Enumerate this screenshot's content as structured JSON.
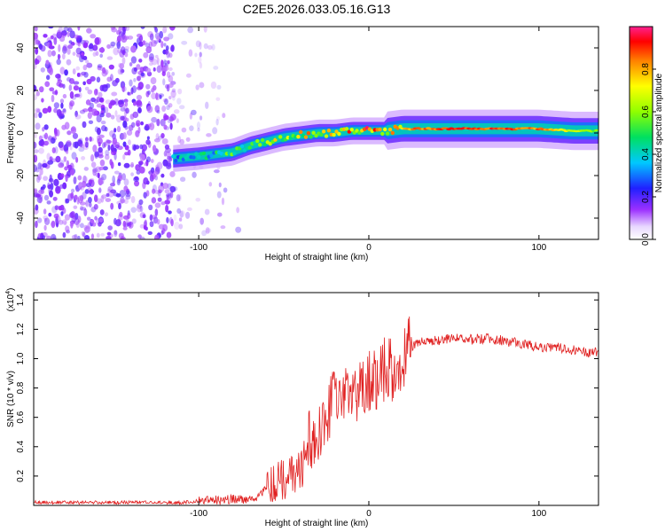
{
  "title": "C2E5.2026.033.05.16.G13",
  "colorbar": {
    "label": "Normalized spectral amplitude",
    "ticks": [
      "0.0",
      "0.2",
      "0.4",
      "0.6",
      "0.8"
    ]
  },
  "colors": {
    "snr_line": "#e02020",
    "scatter_purple": "#7a1cf0",
    "axis": "#000000"
  },
  "chart_data": [
    {
      "type": "heatmap",
      "title": "C2E5.2026.033.05.16.G13",
      "xlabel": "Height of straight line (km)",
      "ylabel": "Frequency (Hz)",
      "xlim": [
        -197,
        135
      ],
      "ylim": [
        -50,
        50
      ],
      "x_ticks": [
        -100,
        0,
        100
      ],
      "x_tick_labels": [
        "-100",
        "0",
        "100"
      ],
      "y_ticks": [
        -40,
        -20,
        0,
        20,
        40
      ],
      "y_tick_labels": [
        "-40",
        "-20",
        "0",
        "20",
        "40"
      ],
      "colorbar_range": [
        0,
        1
      ],
      "ridge": {
        "x": [
          -115,
          -100,
          -90,
          -80,
          -70,
          -60,
          -50,
          -40,
          -30,
          -20,
          -10,
          0,
          10,
          20,
          40,
          60,
          80,
          100,
          120,
          135
        ],
        "freq": [
          -12,
          -11,
          -10,
          -9,
          -6,
          -4,
          -2,
          -1,
          0,
          0,
          1,
          1,
          1,
          2,
          2,
          2,
          2,
          2,
          1,
          1
        ],
        "amplitude": [
          0.4,
          0.5,
          0.5,
          0.6,
          0.7,
          0.75,
          0.8,
          0.85,
          0.9,
          0.9,
          0.95,
          0.95,
          0.9,
          0.85,
          0.95,
          0.95,
          0.95,
          0.9,
          0.7,
          0.6
        ]
      },
      "noise_region": {
        "x_range": [
          -197,
          -70
        ],
        "freq_range": [
          -50,
          50
        ],
        "amplitude": 0.1
      }
    },
    {
      "type": "line",
      "xlabel": "Height of straight line (km)",
      "ylabel": "SNR (10 * v/v)",
      "y_multiplier": "(x10",
      "y_multiplier_exp": "4",
      "y_multiplier_close": ")",
      "xlim": [
        -197,
        135
      ],
      "ylim": [
        0,
        1.45
      ],
      "x_ticks": [
        -100,
        0,
        100
      ],
      "x_tick_labels": [
        "-100",
        "0",
        "100"
      ],
      "y_ticks": [
        0.2,
        0.4,
        0.6,
        0.8,
        1.0,
        1.2,
        1.4
      ],
      "y_tick_labels": [
        "0.2",
        "0.4",
        "0.6",
        "0.8",
        "1.0",
        "1.2",
        "1.4"
      ],
      "series": [
        {
          "name": "SNR",
          "x": [
            -197,
            -150,
            -110,
            -100,
            -80,
            -65,
            -60,
            -50,
            -40,
            -35,
            -30,
            -25,
            -20,
            -15,
            -10,
            -5,
            0,
            5,
            10,
            15,
            20,
            25,
            30,
            40,
            50,
            60,
            70,
            80,
            90,
            100,
            110,
            120,
            130,
            135
          ],
          "y": [
            0.02,
            0.02,
            0.02,
            0.03,
            0.04,
            0.05,
            0.12,
            0.18,
            0.25,
            0.35,
            0.48,
            0.6,
            0.75,
            0.72,
            0.8,
            0.78,
            0.85,
            0.88,
            0.95,
            0.9,
            0.98,
            1.08,
            1.12,
            1.12,
            1.15,
            1.13,
            1.14,
            1.12,
            1.1,
            1.08,
            1.08,
            1.06,
            1.04,
            1.04
          ]
        }
      ]
    }
  ]
}
